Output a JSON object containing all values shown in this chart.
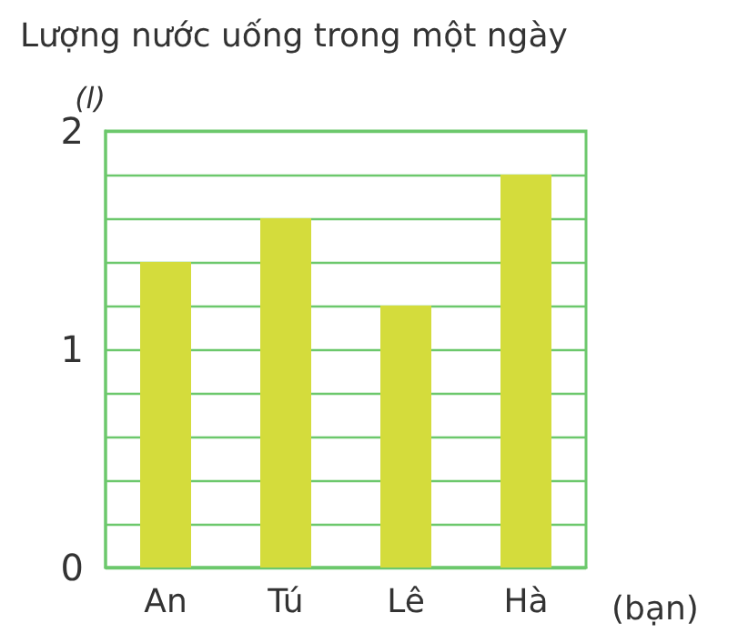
{
  "chart_data": {
    "type": "bar",
    "title": "Lượng nước uống trong một ngày",
    "ylabel": "(l)",
    "xlabel": "(bạn)",
    "categories": [
      "An",
      "Tú",
      "Lê",
      "Hà"
    ],
    "values": [
      1.4,
      1.6,
      1.2,
      1.8
    ],
    "color": "#d4dc3c",
    "ylim": [
      0,
      2
    ],
    "yticks": [
      0,
      {
        "value": 0.2,
        "label": null
      },
      {
        "value": 0.4,
        "label": null
      },
      {
        "value": 0.6,
        "label": null
      },
      {
        "value": 0.8,
        "label": null
      },
      1,
      {
        "value": 1.2,
        "label": null
      },
      {
        "value": 1.4,
        "label": null
      },
      {
        "value": 1.6,
        "label": null
      },
      {
        "value": 1.8,
        "label": null
      },
      2
    ],
    "grid": "y"
  }
}
